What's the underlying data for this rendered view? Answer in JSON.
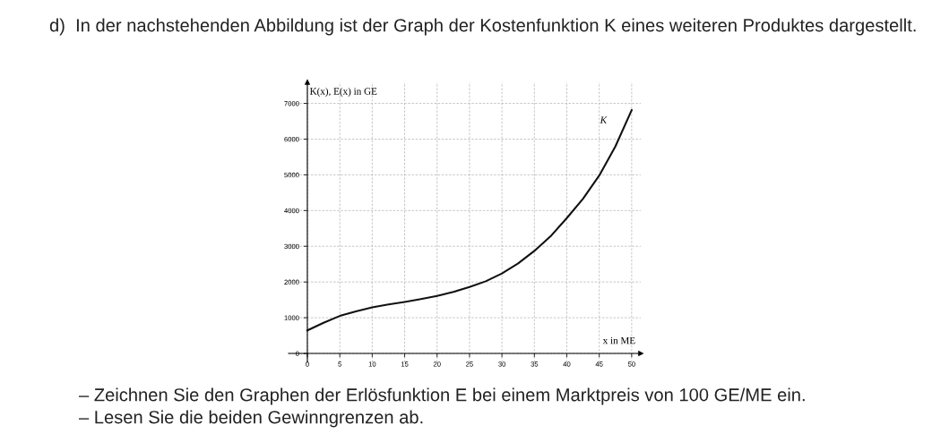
{
  "chart_data": {
    "type": "line",
    "title": "d)  In der nachstehenden Abbildung ist der Graph der Kostenfunktion K eines weiteren Produktes dargestellt.",
    "xlabel": "x in ME",
    "ylabel": "K(x), E(x) in GE",
    "x": [
      0,
      2.5,
      5,
      7.5,
      10,
      12.5,
      15,
      17.5,
      20,
      22.5,
      25,
      27.5,
      30,
      32.5,
      35,
      37.5,
      40,
      42.5,
      45,
      47.5,
      50
    ],
    "series": [
      {
        "name": "K",
        "color": "#111111",
        "values": [
          645,
          860,
          1050,
          1180,
          1290,
          1370,
          1440,
          1520,
          1610,
          1720,
          1860,
          2020,
          2240,
          2520,
          2870,
          3280,
          3790,
          4330,
          4980,
          5800,
          6810
        ]
      }
    ],
    "xlim": [
      -2.9,
      51.4
    ],
    "ylim": [
      -250,
      7590
    ],
    "xticks": [
      0,
      5,
      10,
      15,
      20,
      25,
      30,
      35,
      40,
      45,
      50
    ],
    "yticks": [
      0,
      1000,
      2000,
      3000,
      4000,
      5000,
      6000,
      7000
    ],
    "grid": true,
    "line_style": "solid",
    "marker": "none",
    "legend": false,
    "annotations": [
      "– Zeichnen Sie den Graphen der Erlösfunktion E bei einem Marktpreis von 100 GE/ME ein.",
      "– Lesen Sie die beiden Gewinngrenzen ab."
    ]
  }
}
